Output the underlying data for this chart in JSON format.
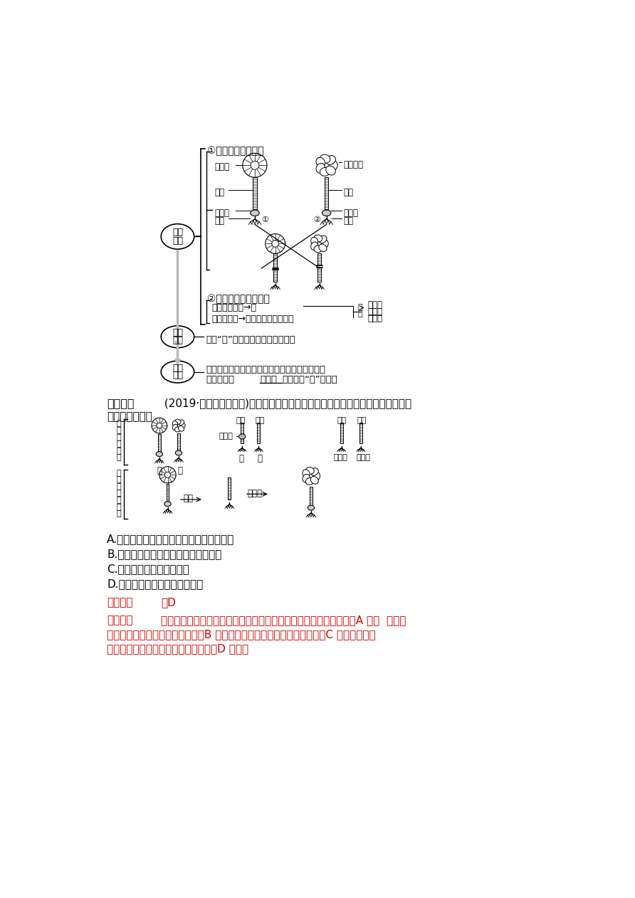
{
  "bg_color": "#ffffff",
  "page_width": 8.92,
  "page_height": 12.62,
  "options": [
    "A.生物体形态结构的建成主要与细胞质有关",
    "B.细胞的分裂和分化是由细胞核控制的",
    "C.细胞核是细胞代谢的中心",
    "D.细胞核是细胞遗传的控制中心"
  ],
  "red_color": "#cc0000"
}
